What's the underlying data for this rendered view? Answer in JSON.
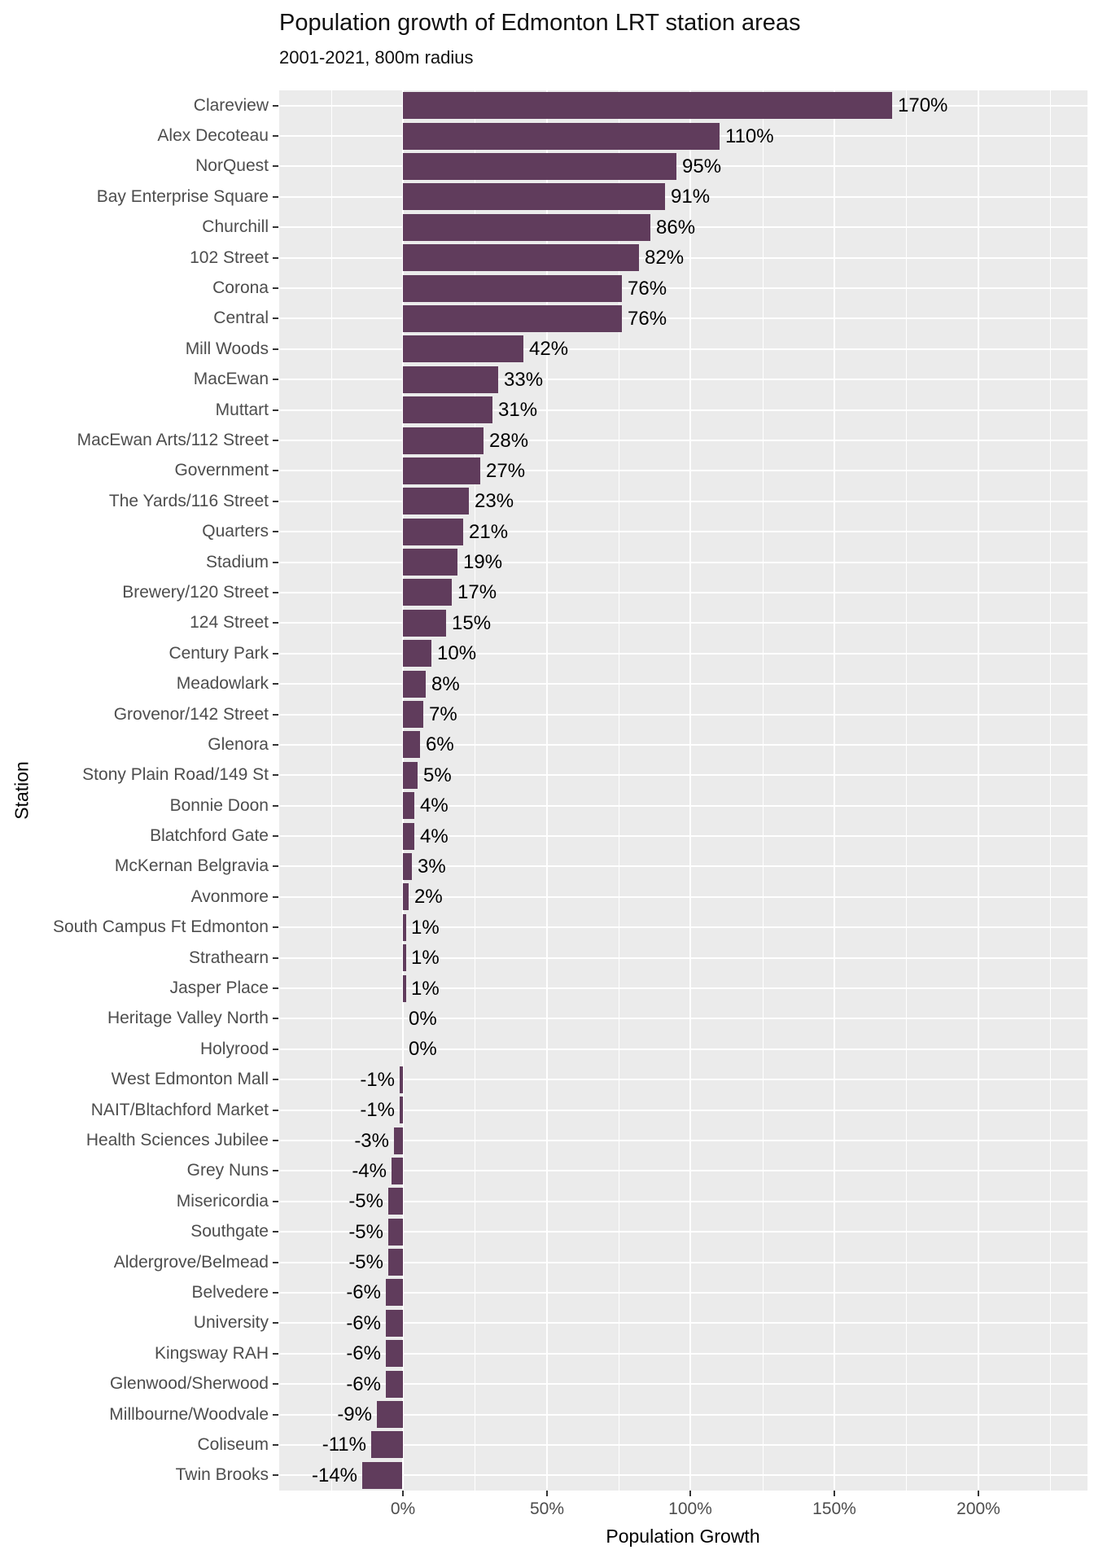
{
  "title": "Population growth of Edmonton LRT station areas",
  "subtitle": "2001-2021, 800m radius",
  "chart_data": {
    "type": "bar",
    "orientation": "horizontal",
    "title": "Population growth of Edmonton LRT station areas",
    "subtitle": "2001-2021, 800m radius",
    "xlabel": "Population Growth",
    "ylabel": "Station",
    "legend": "none",
    "grid": "on",
    "categories": [
      "Clareview",
      "Alex Decoteau",
      "NorQuest",
      "Bay Enterprise Square",
      "Churchill",
      "102 Street",
      "Corona",
      "Central",
      "Mill Woods",
      "MacEwan",
      "Muttart",
      "MacEwan Arts/112 Street",
      "Government",
      "The Yards/116 Street",
      "Quarters",
      "Stadium",
      "Brewery/120 Street",
      "124 Street",
      "Century Park",
      "Meadowlark",
      "Grovenor/142 Street",
      "Glenora",
      "Stony Plain Road/149 St",
      "Bonnie Doon",
      "Blatchford Gate",
      "McKernan Belgravia",
      "Avonmore",
      "South Campus Ft Edmonton",
      "Strathearn",
      "Jasper Place",
      "Heritage Valley North",
      "Holyrood",
      "West Edmonton Mall",
      "NAIT/Bltachford Market",
      "Health Sciences Jubilee",
      "Grey Nuns",
      "Misericordia",
      "Southgate",
      "Aldergrove/Belmead",
      "Belvedere",
      "University",
      "Kingsway RAH",
      "Glenwood/Sherwood",
      "Millbourne/Woodvale",
      "Coliseum",
      "Twin Brooks"
    ],
    "values": [
      170,
      110,
      95,
      91,
      86,
      82,
      76,
      76,
      42,
      33,
      31,
      28,
      27,
      23,
      21,
      19,
      17,
      15,
      10,
      8,
      7,
      6,
      5,
      4,
      4,
      3,
      2,
      1,
      1,
      1,
      0,
      0,
      -1,
      -1,
      -3,
      -4,
      -5,
      -5,
      -5,
      -6,
      -6,
      -6,
      -6,
      -9,
      -11,
      -14
    ],
    "value_label_suffix": "%",
    "x_ticks": [
      {
        "value": 0,
        "label": "0%"
      },
      {
        "value": 50,
        "label": "50%"
      },
      {
        "value": 100,
        "label": "100%"
      },
      {
        "value": 150,
        "label": "150%"
      },
      {
        "value": 200,
        "label": "200%"
      }
    ],
    "x_minor_ticks": [
      -25,
      25,
      75,
      125,
      175,
      225
    ],
    "xlim": [
      -43,
      238
    ],
    "colors": {
      "bar": "#603C5C",
      "panel_background": "#EBEBEB",
      "gridline": "#FFFFFF",
      "axis_text": "#4D4D4D",
      "value_text": "#000000",
      "tick_mark": "#333333",
      "page_background": "#FFFFFF"
    }
  }
}
